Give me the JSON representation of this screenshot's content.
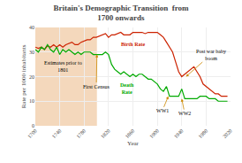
{
  "chart_data": {
    "type": "line",
    "title": "Britain's Demographic Transition  from\n1700 onwards",
    "x_label": "Year",
    "y_label": "Rate per 1000 inhabitants",
    "x": [
      1700,
      1705,
      1710,
      1715,
      1720,
      1725,
      1730,
      1735,
      1740,
      1745,
      1750,
      1755,
      1760,
      1765,
      1770,
      1775,
      1780,
      1785,
      1790,
      1795,
      1800,
      1805,
      1810,
      1815,
      1820,
      1825,
      1830,
      1835,
      1840,
      1845,
      1850,
      1855,
      1860,
      1865,
      1870,
      1875,
      1880,
      1885,
      1890,
      1895,
      1900,
      1905,
      1910,
      1915,
      1920,
      1925,
      1930,
      1935,
      1940,
      1945,
      1950,
      1955,
      1960,
      1965,
      1970,
      1975,
      1980,
      1985,
      1990,
      1995,
      2000,
      2005,
      2010,
      2015
    ],
    "series": [
      {
        "name": "Birth Rate",
        "color": "#cc2200",
        "values": [
          32,
          31.5,
          32,
          31,
          32.5,
          32,
          33,
          32,
          33,
          32,
          33,
          33.5,
          34,
          33,
          33,
          34,
          34.5,
          35,
          35,
          36,
          36,
          36.5,
          37,
          37.5,
          36,
          37,
          37,
          37.5,
          38,
          37,
          37,
          37,
          38,
          38,
          38,
          38,
          37.5,
          38,
          38,
          38,
          38,
          37,
          36,
          34,
          32,
          30,
          26,
          22,
          20,
          21,
          22,
          23,
          24,
          22,
          20,
          17,
          16,
          15,
          14,
          13,
          13,
          12,
          12,
          12
        ]
      },
      {
        "name": "Death\nRate",
        "color": "#00aa00",
        "values": [
          31,
          30,
          32,
          31,
          33,
          31,
          30,
          32,
          29,
          31,
          30,
          31,
          30,
          29,
          30,
          29,
          30,
          30,
          30,
          29,
          29,
          29,
          29,
          30,
          29,
          25,
          23,
          22,
          21,
          22,
          21,
          20,
          21,
          20,
          21,
          21,
          20,
          19,
          19,
          18,
          17,
          15,
          14,
          16,
          12,
          12,
          12,
          12,
          15,
          11,
          11,
          11,
          11,
          11,
          12,
          12,
          12,
          11,
          11,
          11,
          10,
          10,
          10,
          10
        ]
      }
    ],
    "annotations": [
      {
        "text": "Estimates prior to\n1801"
      },
      {
        "text": "First Census"
      },
      {
        "text": "WW1"
      },
      {
        "text": "WW2"
      },
      {
        "text": "Post war baby\nboom"
      }
    ],
    "xlim": [
      1700,
      2020
    ],
    "ylim": [
      0,
      40
    ],
    "xticks": [
      1700,
      1740,
      1780,
      1820,
      1860,
      1900,
      1940,
      1980,
      2020
    ],
    "yticks": [
      0,
      10,
      20,
      30,
      40
    ],
    "grid": true
  }
}
